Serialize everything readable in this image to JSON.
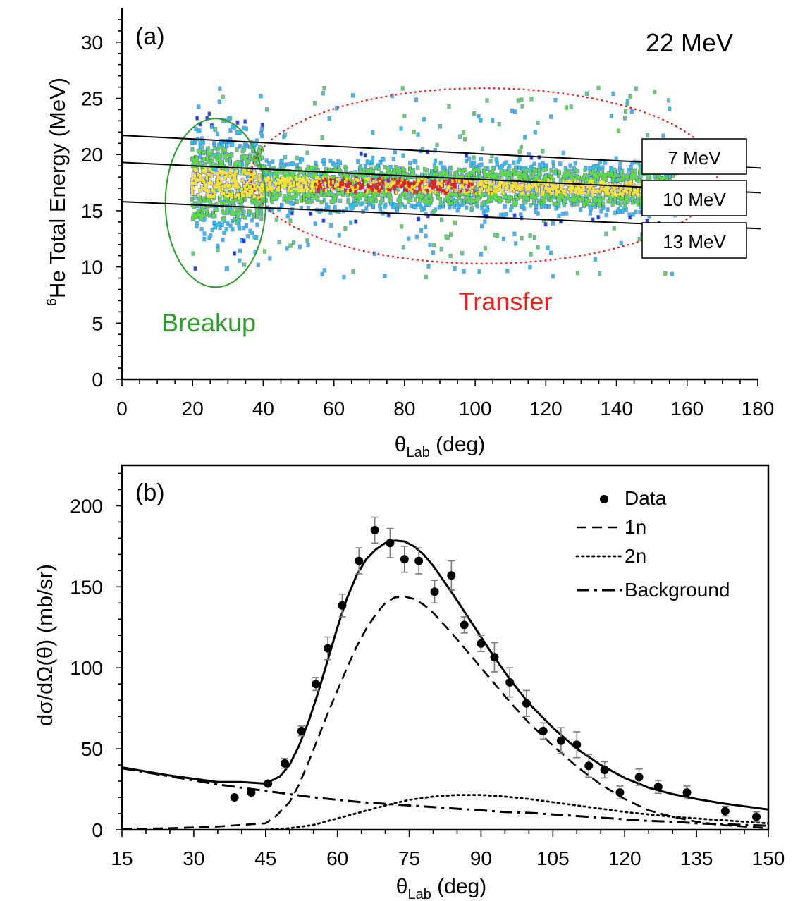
{
  "chart_data": [
    {
      "panel": "(a)",
      "type": "heatmap",
      "title": "22 MeV",
      "xlabel": "θ",
      "xlabel_sub": "Lab",
      "xlabel_unit": " (deg)",
      "ylabel_sup": "6",
      "ylabel": "He Total Energy (MeV)",
      "xlim": [
        0,
        180
      ],
      "ylim": [
        0,
        33
      ],
      "xticks": [
        0,
        20,
        40,
        60,
        80,
        100,
        120,
        140,
        160,
        180
      ],
      "yticks": [
        0,
        5,
        10,
        15,
        20,
        25,
        30
      ],
      "xtick_labels": [
        "0",
        "20",
        "40",
        "60",
        "80",
        "100",
        "120",
        "140",
        "160",
        "180"
      ],
      "ytick_labels": [
        "0",
        "5",
        "10",
        "15",
        "20",
        "25",
        "30"
      ],
      "band_lines": [
        {
          "label": "7 MeV",
          "x": [
            0,
            180
          ],
          "y": [
            21.7,
            18.8
          ]
        },
        {
          "label": "10 MeV",
          "x": [
            0,
            180
          ],
          "y": [
            19.3,
            16.6
          ]
        },
        {
          "label": "13 MeV",
          "x": [
            0,
            180
          ],
          "y": [
            15.8,
            13.4
          ]
        }
      ],
      "regions": [
        {
          "label": "Breakup",
          "shape": "ellipse",
          "center": [
            26.5,
            15.7
          ],
          "radii": [
            14.2,
            7.5
          ],
          "color": "#2e9b2e",
          "style": "solid"
        },
        {
          "label": "Transfer",
          "shape": "ellipse",
          "center": [
            102.5,
            18.1
          ],
          "radii": [
            66,
            7.8
          ],
          "color": "#e8231e",
          "style": "dotted"
        }
      ],
      "scatter_density": {
        "x_range": [
          20,
          157
        ],
        "y_center": 17.2,
        "colors": [
          "#1f3bd6",
          "#2fc1e0",
          "#5fd84a",
          "#f2e23a",
          "#e8231e"
        ]
      }
    },
    {
      "panel": "(b)",
      "type": "line",
      "xlabel": "θ",
      "xlabel_sub": "Lab",
      "xlabel_unit": " (deg)",
      "ylabel": "dσ/dΩ(θ) (mb/sr)",
      "xlim": [
        15,
        150
      ],
      "ylim": [
        0,
        225
      ],
      "xticks": [
        15,
        30,
        45,
        60,
        75,
        90,
        105,
        120,
        135,
        150
      ],
      "yticks": [
        0,
        50,
        100,
        150,
        200
      ],
      "xtick_labels": [
        "15",
        "30",
        "45",
        "60",
        "75",
        "90",
        "105",
        "120",
        "135",
        "150"
      ],
      "ytick_labels": [
        "0",
        "50",
        "100",
        "150",
        "200"
      ],
      "legend": [
        "Data",
        "1n",
        "2n",
        "Background"
      ],
      "legend_position": "top-right",
      "data": {
        "name": "Data",
        "x": [
          38.5,
          42,
          45.5,
          49,
          52.5,
          55.5,
          58,
          61,
          64.5,
          67.8,
          71,
          74,
          77,
          80.3,
          83.8,
          86.5,
          90,
          92.8,
          96,
          99.5,
          103,
          106.7,
          110,
          112.5,
          115.8,
          119,
          123,
          127,
          133,
          141,
          147.5
        ],
        "y": [
          20,
          23,
          28.5,
          41,
          61,
          90,
          112,
          138.5,
          166,
          185,
          177,
          167,
          166,
          147,
          157,
          126.5,
          115,
          106.5,
          91,
          78,
          61,
          55,
          52.5,
          39.5,
          37,
          23,
          32.5,
          26.5,
          23,
          11.5,
          8
        ],
        "err": [
          0,
          0,
          0,
          3,
          3,
          4,
          7,
          7,
          8,
          8,
          9,
          8,
          8,
          7,
          9,
          5,
          5,
          9,
          9,
          8,
          5,
          8,
          8,
          7,
          5,
          4,
          5,
          4,
          4,
          3,
          3
        ]
      },
      "series": [
        {
          "name": "Total",
          "style": "solid",
          "x": [
            15,
            20,
            25,
            30,
            35,
            40,
            45,
            48,
            50,
            52,
            54,
            56,
            58,
            60,
            62,
            64,
            66,
            68,
            70,
            72,
            74,
            76,
            78,
            80,
            84,
            88,
            92,
            96,
            100,
            105,
            110,
            115,
            120,
            125,
            130,
            135,
            140,
            145,
            150
          ],
          "y": [
            38.5,
            36,
            33.5,
            31.5,
            29.5,
            29.5,
            28.5,
            33,
            40,
            52,
            67,
            85,
            105,
            125,
            143,
            157,
            167,
            173,
            177,
            178.5,
            178,
            175,
            170,
            163,
            146,
            128,
            110,
            93,
            78,
            63,
            50,
            40,
            32,
            26,
            22,
            19,
            16.5,
            14.5,
            12.5
          ]
        },
        {
          "name": "1n",
          "style": "dashed",
          "x": [
            15,
            25,
            35,
            40,
            45,
            47,
            50,
            52,
            54,
            56,
            58,
            60,
            62,
            64,
            66,
            68,
            70,
            72,
            74,
            76,
            78,
            80,
            84,
            88,
            92,
            96,
            100,
            105,
            110,
            115,
            120,
            125,
            130,
            135,
            140,
            145,
            150
          ],
          "y": [
            0.5,
            1,
            2,
            3,
            4,
            8,
            17,
            28,
            42,
            57,
            72,
            86,
            100,
            113,
            124,
            133,
            140,
            143.5,
            144,
            142.5,
            139,
            134,
            121,
            107,
            93,
            79,
            66,
            52,
            39,
            28,
            19,
            12,
            8,
            5,
            3,
            2,
            1
          ]
        },
        {
          "name": "2n",
          "style": "dotted",
          "x": [
            45,
            50,
            55,
            60,
            65,
            70,
            75,
            80,
            85,
            90,
            95,
            100,
            105,
            110,
            115,
            120,
            125,
            130,
            135,
            140,
            145,
            150
          ],
          "y": [
            0,
            1,
            3,
            7,
            11,
            15,
            18.5,
            20.5,
            21.5,
            21.5,
            20.5,
            19,
            17,
            15,
            13,
            11,
            9.5,
            8,
            7,
            6,
            5,
            4
          ]
        },
        {
          "name": "Background",
          "style": "dashdot",
          "x": [
            15,
            20,
            25,
            30,
            35,
            40,
            45,
            50,
            55,
            60,
            65,
            70,
            75,
            80,
            85,
            90,
            95,
            100,
            105,
            110,
            115,
            120,
            125,
            130,
            135,
            140,
            145,
            150
          ],
          "y": [
            38,
            35.5,
            33,
            30.5,
            28,
            26,
            24,
            22,
            20,
            18.5,
            17,
            16,
            15,
            14,
            13,
            12,
            11,
            10.5,
            9.5,
            8.5,
            7.5,
            6.5,
            5.5,
            5,
            4,
            3.5,
            3,
            2.5
          ]
        }
      ]
    }
  ]
}
